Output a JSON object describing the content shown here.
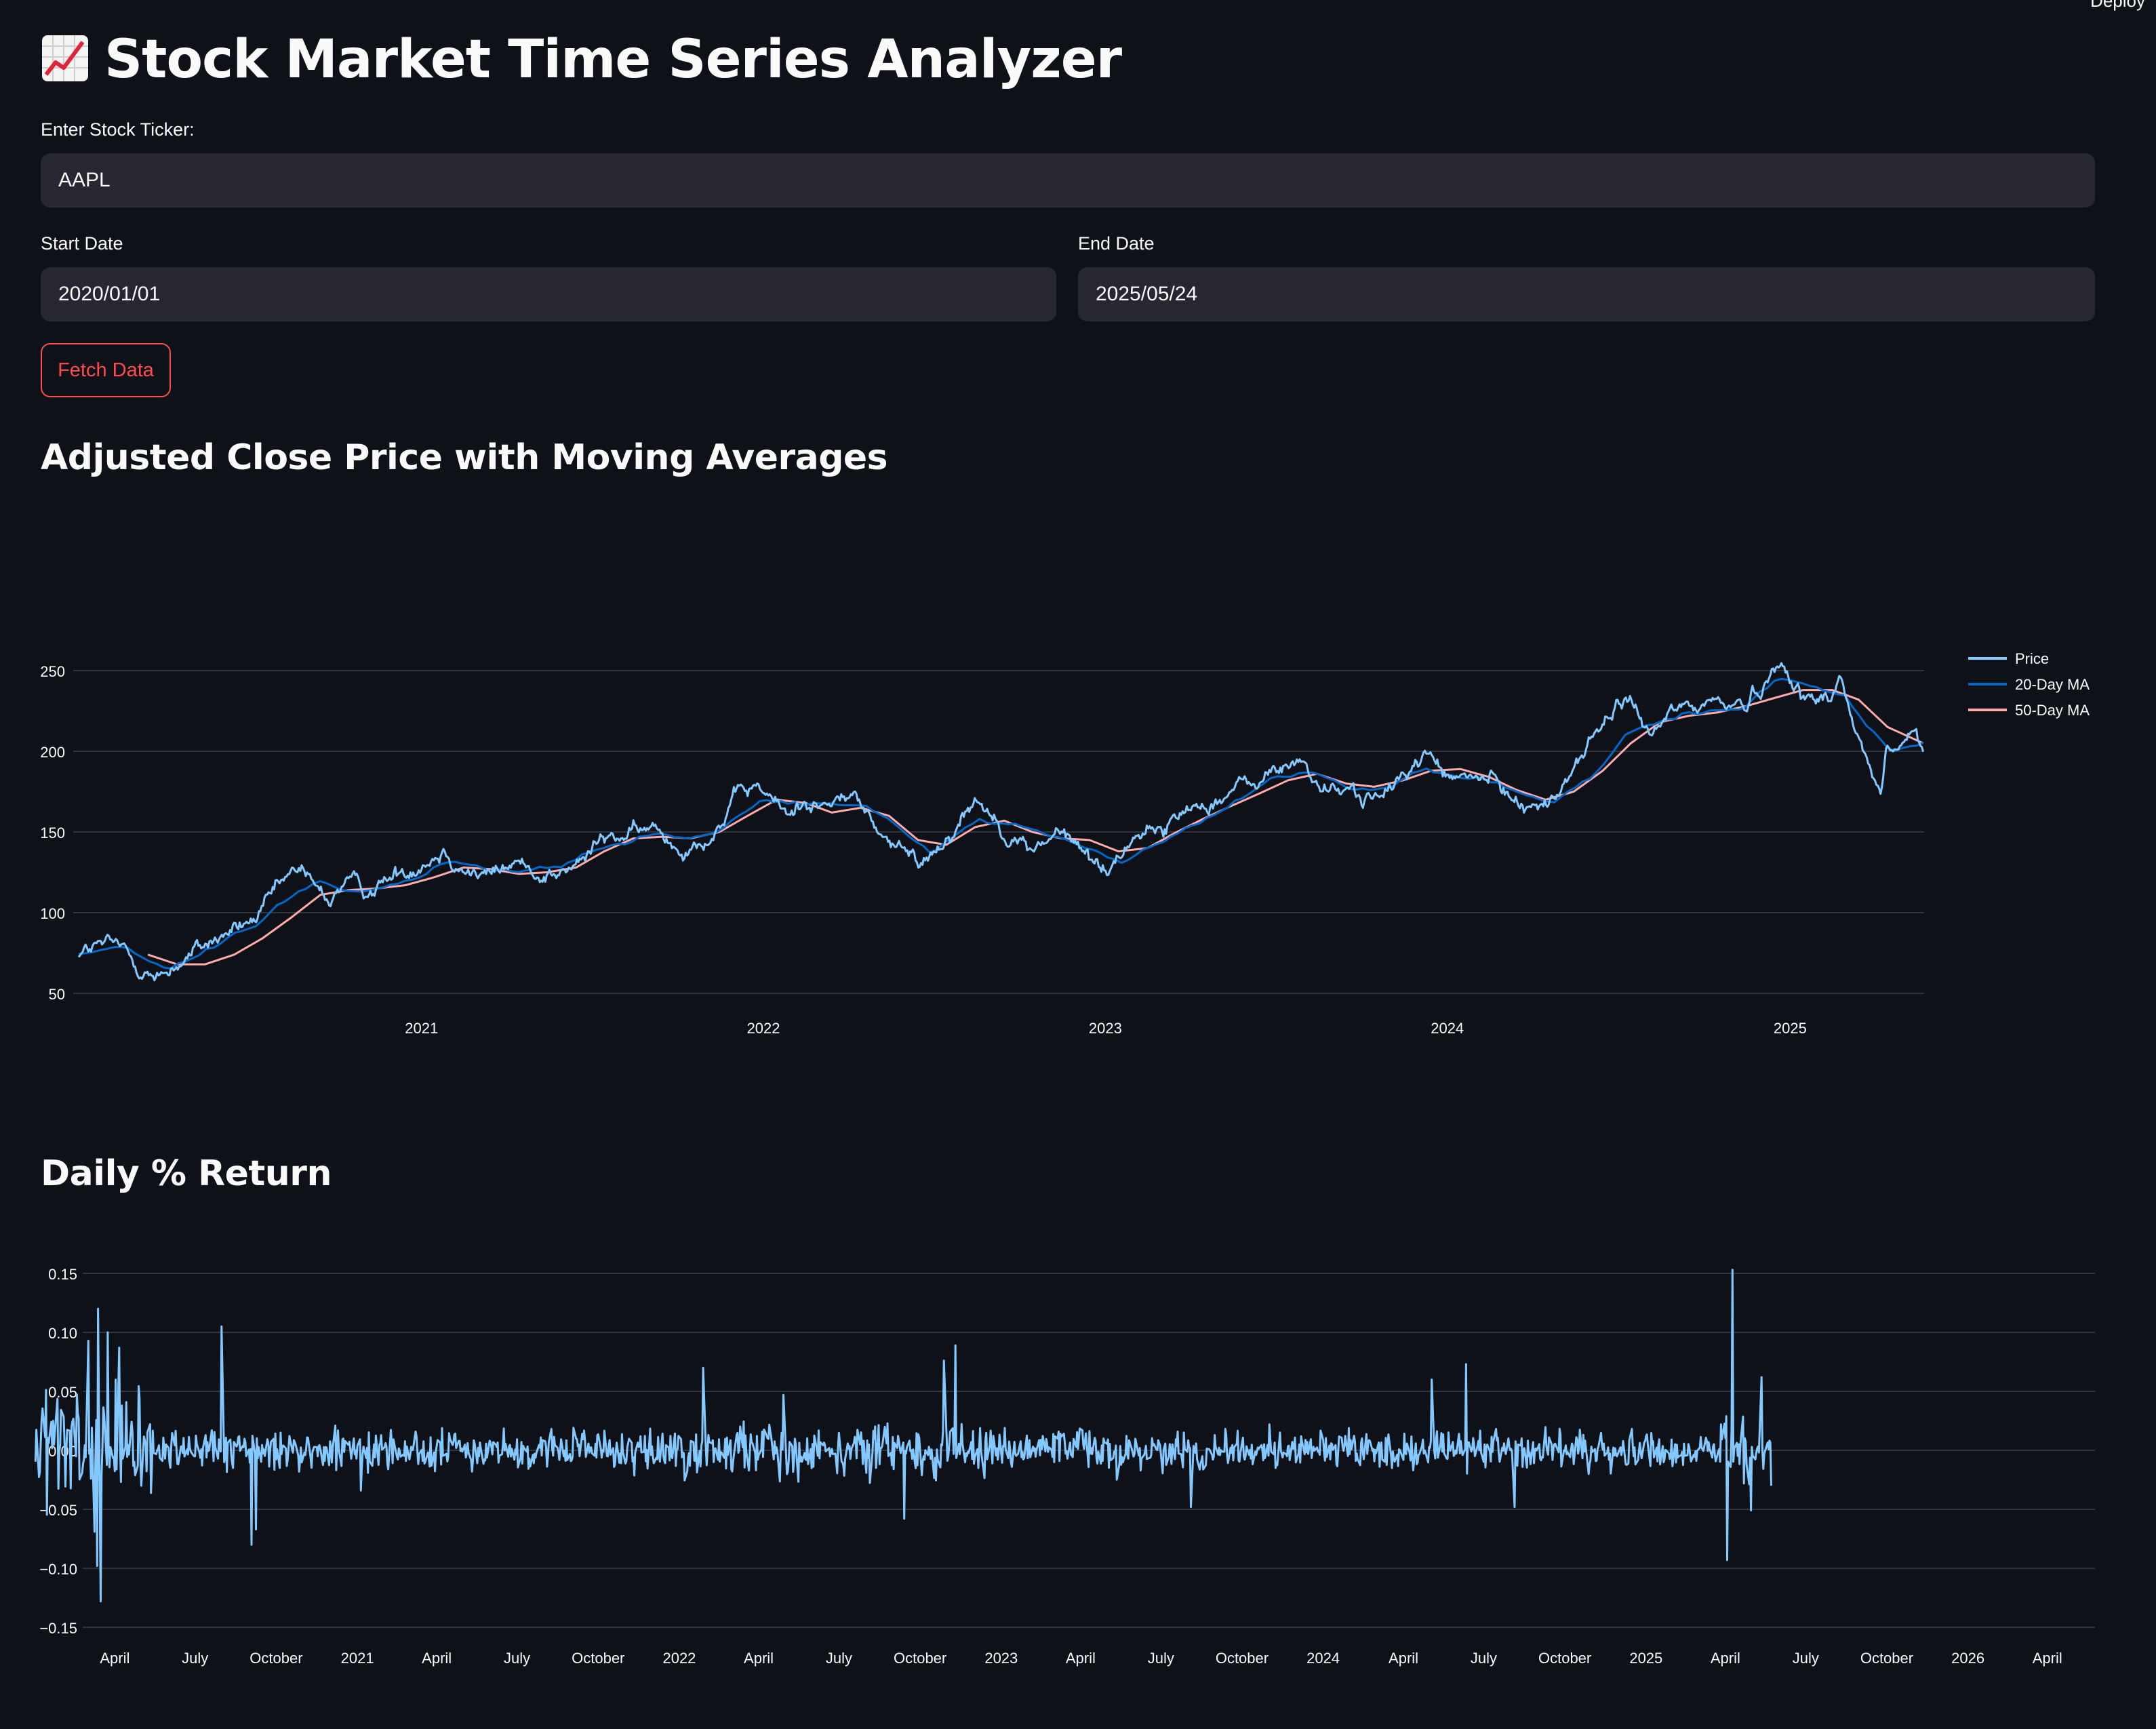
{
  "header": {
    "deploy_label": "Deploy"
  },
  "title": "Stock Market Time Series Analyzer",
  "form": {
    "ticker_label": "Enter Stock Ticker:",
    "ticker_value": "AAPL",
    "start_label": "Start Date",
    "start_value": "2020/01/01",
    "end_label": "End Date",
    "end_value": "2025/05/24",
    "fetch_label": "Fetch Data"
  },
  "colors": {
    "background": "#0e1117",
    "input_bg": "#262730",
    "accent": "#ff4b4b",
    "price": "#83c9ff",
    "ma20": "#0068c9",
    "ma50": "#ffabab",
    "returns": "#83c9ff"
  },
  "section_price": {
    "heading": "Adjusted Close Price with Moving Averages"
  },
  "section_returns": {
    "heading": "Daily % Return"
  },
  "chart_data": [
    {
      "type": "line",
      "title": "Adjusted Close Price with Moving Averages",
      "x_range": [
        "2020-01-01",
        "2025-05-24"
      ],
      "ylim": [
        50,
        250
      ],
      "y_ticks": [
        "50",
        "100",
        "150",
        "200",
        "250"
      ],
      "x_ticks": [
        {
          "date": "2021-01-01",
          "label": "2021"
        },
        {
          "date": "2022-01-01",
          "label": "2022"
        },
        {
          "date": "2023-01-01",
          "label": "2023"
        },
        {
          "date": "2024-01-01",
          "label": "2024"
        },
        {
          "date": "2025-01-01",
          "label": "2025"
        }
      ],
      "grid": true,
      "legend": "top-right",
      "series": [
        {
          "name": "Price",
          "color": "#83c9ff",
          "x": [
            "2020-01-01",
            "2020-01-20",
            "2020-02-10",
            "2020-02-20",
            "2020-03-05",
            "2020-03-12",
            "2020-03-23",
            "2020-04-15",
            "2020-05-10",
            "2020-06-10",
            "2020-07-10",
            "2020-08-01",
            "2020-08-28",
            "2020-09-08",
            "2020-09-25",
            "2020-10-12",
            "2020-11-02",
            "2020-12-01",
            "2021-01-25",
            "2021-02-15",
            "2021-03-08",
            "2021-04-10",
            "2021-05-12",
            "2021-06-10",
            "2021-07-15",
            "2021-08-20",
            "2021-09-10",
            "2021-10-04",
            "2021-11-10",
            "2021-12-10",
            "2021-12-27",
            "2022-01-27",
            "2022-02-15",
            "2022-03-14",
            "2022-04-04",
            "2022-05-12",
            "2022-06-16",
            "2022-07-20",
            "2022-08-17",
            "2022-09-15",
            "2022-10-13",
            "2022-11-10",
            "2022-12-01",
            "2023-01-03",
            "2023-02-02",
            "2023-03-03",
            "2023-04-05",
            "2023-05-05",
            "2023-06-05",
            "2023-07-31",
            "2023-08-20",
            "2023-09-20",
            "2023-10-26",
            "2023-11-20",
            "2023-12-14",
            "2024-01-05",
            "2024-02-15",
            "2024-03-08",
            "2024-04-19",
            "2024-05-15",
            "2024-06-11",
            "2024-07-16",
            "2024-08-05",
            "2024-08-28",
            "2024-09-20",
            "2024-10-15",
            "2024-11-15",
            "2024-12-26",
            "2025-01-14",
            "2025-02-05",
            "2025-02-24",
            "2025-03-13",
            "2025-04-08",
            "2025-04-14",
            "2025-04-23",
            "2025-05-13",
            "2025-05-23"
          ],
          "values": [
            75,
            79,
            80,
            76,
            66,
            68,
            57,
            68,
            78,
            88,
            96,
            115,
            129,
            115,
            108,
            120,
            113,
            122,
            139,
            128,
            122,
            131,
            124,
            126,
            146,
            149,
            152,
            140,
            150,
            175,
            178,
            160,
            170,
            165,
            175,
            145,
            130,
            150,
            172,
            152,
            138,
            150,
            142,
            125,
            150,
            152,
            166,
            172,
            180,
            195,
            175,
            175,
            170,
            190,
            198,
            182,
            183,
            172,
            165,
            191,
            214,
            234,
            205,
            226,
            228,
            231,
            229,
            258,
            232,
            232,
            246,
            210,
            172,
            200,
            200,
            212,
            196
          ]
        },
        {
          "name": "20-Day MA",
          "color": "#0068c9",
          "x": [
            "2020-01-01",
            "2020-02-10",
            "2020-03-10",
            "2020-04-05",
            "2020-05-10",
            "2020-06-10",
            "2020-07-10",
            "2020-08-10",
            "2020-09-10",
            "2020-10-10",
            "2020-11-10",
            "2020-12-20",
            "2021-01-30",
            "2021-03-10",
            "2021-04-20",
            "2021-05-30",
            "2021-07-10",
            "2021-08-20",
            "2021-09-30",
            "2021-11-10",
            "2021-12-30",
            "2022-02-10",
            "2022-03-20",
            "2022-04-20",
            "2022-05-30",
            "2022-06-30",
            "2022-08-20",
            "2022-09-30",
            "2022-11-10",
            "2022-12-20",
            "2023-01-20",
            "2023-03-01",
            "2023-04-10",
            "2023-05-20",
            "2023-06-30",
            "2023-08-10",
            "2023-09-20",
            "2023-10-30",
            "2023-12-10",
            "2024-01-20",
            "2024-03-01",
            "2024-04-20",
            "2024-05-30",
            "2024-07-10",
            "2024-08-20",
            "2024-09-30",
            "2024-11-10",
            "2024-12-20",
            "2025-01-30",
            "2025-02-28",
            "2025-03-20",
            "2025-04-20",
            "2025-05-23"
          ],
          "values": [
            75,
            79,
            72,
            64,
            74,
            86,
            94,
            110,
            120,
            115,
            116,
            120,
            132,
            128,
            126,
            127,
            138,
            146,
            147,
            148,
            170,
            167,
            168,
            165,
            150,
            137,
            160,
            155,
            146,
            140,
            130,
            145,
            155,
            168,
            184,
            188,
            178,
            178,
            190,
            185,
            178,
            168,
            180,
            208,
            218,
            225,
            228,
            244,
            240,
            236,
            220,
            200,
            206
          ]
        },
        {
          "name": "50-Day MA",
          "color": "#ffabab",
          "x": [
            "2020-03-15",
            "2020-04-15",
            "2020-05-15",
            "2020-06-15",
            "2020-07-15",
            "2020-08-15",
            "2020-09-15",
            "2020-10-15",
            "2020-11-15",
            "2020-12-15",
            "2021-01-15",
            "2021-02-15",
            "2021-03-15",
            "2021-04-15",
            "2021-05-15",
            "2021-06-15",
            "2021-07-15",
            "2021-08-15",
            "2021-09-15",
            "2021-10-15",
            "2021-11-15",
            "2021-12-15",
            "2022-01-15",
            "2022-02-15",
            "2022-03-15",
            "2022-04-15",
            "2022-05-15",
            "2022-06-15",
            "2022-07-15",
            "2022-08-15",
            "2022-09-15",
            "2022-10-15",
            "2022-11-15",
            "2022-12-15",
            "2023-01-15",
            "2023-02-15",
            "2023-03-15",
            "2023-04-15",
            "2023-05-15",
            "2023-06-15",
            "2023-07-15",
            "2023-08-15",
            "2023-09-15",
            "2023-10-15",
            "2023-11-15",
            "2023-12-15",
            "2024-01-15",
            "2024-02-15",
            "2024-03-15",
            "2024-04-15",
            "2024-05-15",
            "2024-06-15",
            "2024-07-15",
            "2024-08-15",
            "2024-09-15",
            "2024-10-15",
            "2024-11-15",
            "2024-12-15",
            "2025-01-15",
            "2025-02-15",
            "2025-03-15",
            "2025-04-15",
            "2025-05-23"
          ],
          "values": [
            74,
            68,
            68,
            74,
            84,
            97,
            111,
            114,
            115,
            117,
            122,
            128,
            127,
            124,
            125,
            128,
            138,
            146,
            147,
            146,
            150,
            160,
            170,
            168,
            162,
            165,
            160,
            145,
            142,
            153,
            157,
            150,
            146,
            145,
            138,
            140,
            149,
            158,
            166,
            174,
            182,
            186,
            180,
            178,
            182,
            188,
            189,
            184,
            176,
            170,
            175,
            188,
            205,
            218,
            222,
            224,
            228,
            233,
            238,
            238,
            232,
            215,
            205
          ]
        }
      ]
    },
    {
      "type": "line",
      "title": "Daily % Return",
      "x_range": [
        "2020-02-20",
        "2026-05-25"
      ],
      "data_range": [
        "2020-01-02",
        "2025-05-23"
      ],
      "ylim": [
        -0.15,
        0.15
      ],
      "y_ticks": [
        "0.15",
        "0.10",
        "0.05",
        "0.00",
        "−0.05",
        "−0.10",
        "−0.15"
      ],
      "x_ticks": [
        {
          "date": "2020-04-01",
          "label": "April"
        },
        {
          "date": "2020-07-01",
          "label": "July"
        },
        {
          "date": "2020-10-01",
          "label": "October"
        },
        {
          "date": "2021-01-01",
          "label": "2021"
        },
        {
          "date": "2021-04-01",
          "label": "April"
        },
        {
          "date": "2021-07-01",
          "label": "July"
        },
        {
          "date": "2021-10-01",
          "label": "October"
        },
        {
          "date": "2022-01-01",
          "label": "2022"
        },
        {
          "date": "2022-04-01",
          "label": "April"
        },
        {
          "date": "2022-07-01",
          "label": "July"
        },
        {
          "date": "2022-10-01",
          "label": "October"
        },
        {
          "date": "2023-01-01",
          "label": "2023"
        },
        {
          "date": "2023-04-01",
          "label": "April"
        },
        {
          "date": "2023-07-01",
          "label": "July"
        },
        {
          "date": "2023-10-01",
          "label": "October"
        },
        {
          "date": "2024-01-01",
          "label": "2024"
        },
        {
          "date": "2024-04-01",
          "label": "April"
        },
        {
          "date": "2024-07-01",
          "label": "July"
        },
        {
          "date": "2024-10-01",
          "label": "October"
        },
        {
          "date": "2025-01-01",
          "label": "2025"
        },
        {
          "date": "2025-04-01",
          "label": "April"
        },
        {
          "date": "2025-07-01",
          "label": "July"
        },
        {
          "date": "2025-10-01",
          "label": "October"
        },
        {
          "date": "2026-01-01",
          "label": "2026"
        },
        {
          "date": "2026-04-01",
          "label": "April"
        }
      ],
      "grid": true,
      "series": [
        {
          "name": "",
          "color": "#83c9ff",
          "x": [
            "2020-03-02",
            "2020-03-09",
            "2020-03-12",
            "2020-03-13",
            "2020-03-16",
            "2020-03-24",
            "2020-04-06",
            "2020-07-31",
            "2020-09-08",
            "2020-09-03",
            "2021-01-05",
            "2022-01-28",
            "2022-04-29",
            "2022-10-28",
            "2022-11-10",
            "2022-09-13",
            "2023-08-04",
            "2023-11-01",
            "2024-05-03",
            "2024-06-11",
            "2024-08-05",
            "2025-04-03",
            "2025-04-09",
            "2025-05-12",
            "2025-05-23"
          ],
          "values": [
            0.093,
            -0.069,
            -0.098,
            0.12,
            -0.128,
            0.1,
            0.087,
            0.105,
            -0.067,
            -0.08,
            -0.034,
            0.07,
            0.047,
            0.076,
            0.089,
            -0.058,
            -0.048,
            0.022,
            0.06,
            0.073,
            -0.048,
            -0.093,
            0.153,
            0.062,
            -0.03
          ]
        }
      ]
    }
  ]
}
